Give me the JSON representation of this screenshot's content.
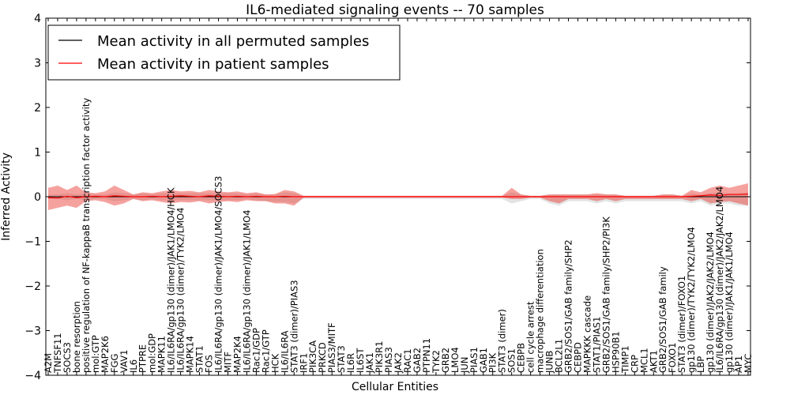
{
  "chart_data": {
    "type": "line",
    "title": "IL6-mediated signaling events -- 70 samples",
    "xlabel": "Cellular Entities",
    "ylabel": "Inferred Activity",
    "ylim": [
      -4,
      4
    ],
    "yticks": [
      -4,
      -3,
      -2,
      -1,
      0,
      1,
      2,
      3,
      4
    ],
    "legend": {
      "location": "top-left",
      "entries": [
        {
          "label": "Mean activity in all permuted samples",
          "color": "#000000"
        },
        {
          "label": "Mean activity in patient samples",
          "color": "#ff0000"
        }
      ]
    },
    "categories": [
      "A2M",
      "TNFSF11",
      "SOCS3",
      "bone resorption",
      "positive regulation of NF-kappaB transcription factor activity",
      "mol:GTP",
      "MAP2K6",
      "FGG",
      "VAV1",
      "IL6",
      "PTPRE",
      "mol:GDP",
      "MAPK11",
      "IL6/IL6RA/gp130 (dimer)/JAK1/LMO4/HCK",
      "IL6/IL6RA/gp130 (dimer)/TYK2/LMO4",
      "MAPK14",
      "STAT1",
      "FOS",
      "IL6/IL6RA/gp130 (dimer)/JAK1/LMO4/SOCS3",
      "MITF",
      "MAP2K4",
      "IL6/IL6RA/gp130 (dimer)/JAK1/LMO4",
      "Rac1/GDP",
      "Rac1/GTP",
      "HCK",
      "IL6/IL6RA",
      "STAT3 (dimer)/PIAS3",
      "IRF1",
      "PIK3CA",
      "PRKCD",
      "PIAS3/MITF",
      "STAT3",
      "IL6R",
      "IL6ST",
      "JAK1",
      "PIK3R1",
      "PIAS3",
      "JAK2",
      "RAC1",
      "GAB2",
      "PTPN11",
      "TYK2",
      "GRB2",
      "LMO4",
      "JUN",
      "PIAS1",
      "GAB1",
      "PI3K",
      "STAT3 (dimer)",
      "SOS1",
      "CEBPB",
      "cell cycle arrest",
      "macrophage differentiation",
      "JUNB",
      "BCL2L1",
      "GRB2/SOS1/GAB family/SHP2",
      "CEBPD",
      "MAPKKK cascade",
      "STAT1/PIAS1",
      "GRB2/SOS1/GAB family/SHP2/PI3K",
      "HSP90B1",
      "TIMP1",
      "CRP",
      "MCL1",
      "AKT1",
      "GRB2/SOS1/GAB family",
      "FOXO1",
      "STAT3 (dimer)/FOXO1",
      "gp130 (dimer)/TYK2/TYK2/LMO4",
      "LBP",
      "gp130 (dimer)/JAK2/JAK2/LMO4",
      "IL6/IL6RA/gp130 (dimer)/JAK2/JAK2/LMO4",
      "gp130 (dimer)/JAK1/JAK1/LMO4",
      "AP1",
      "MYC"
    ],
    "series": [
      {
        "name": "Mean activity in patient samples",
        "color": "#ff0000",
        "values": [
          -0.02,
          -0.03,
          0.01,
          -0.02,
          0.0,
          0.01,
          0.0,
          0.02,
          0.01,
          0.0,
          0.0,
          0.01,
          0.0,
          0.01,
          0.02,
          0.01,
          0.0,
          0.02,
          0.01,
          0.0,
          0.01,
          0.0,
          0.01,
          0.0,
          0.0,
          0.01,
          0.0,
          0.0,
          0.0,
          0.0,
          0.0,
          0.0,
          0.0,
          0.0,
          0.0,
          0.0,
          0.0,
          0.0,
          0.0,
          0.0,
          0.0,
          0.0,
          0.0,
          0.0,
          0.0,
          0.0,
          0.0,
          0.0,
          0.0,
          0.0,
          0.0,
          0.0,
          0.0,
          0.0,
          0.0,
          0.0,
          0.0,
          0.0,
          0.0,
          0.0,
          0.0,
          0.0,
          0.0,
          0.0,
          0.0,
          0.0,
          0.0,
          0.0,
          0.01,
          0.02,
          0.04,
          0.03,
          0.05,
          0.05,
          0.06
        ],
        "band_upper": [
          0.2,
          0.25,
          0.15,
          0.25,
          0.1,
          0.08,
          0.12,
          0.25,
          0.15,
          0.05,
          0.1,
          0.08,
          0.12,
          0.15,
          0.12,
          0.13,
          0.1,
          0.15,
          0.12,
          0.1,
          0.12,
          0.08,
          0.1,
          0.05,
          0.06,
          0.15,
          0.12,
          0.02,
          0.02,
          0.02,
          0.02,
          0.02,
          0.02,
          0.02,
          0.02,
          0.02,
          0.02,
          0.02,
          0.02,
          0.02,
          0.02,
          0.02,
          0.02,
          0.02,
          0.02,
          0.02,
          0.02,
          0.02,
          0.02,
          0.2,
          0.05,
          0.02,
          0.02,
          0.05,
          0.05,
          0.05,
          0.05,
          0.05,
          0.08,
          0.05,
          0.05,
          0.02,
          0.02,
          0.02,
          0.02,
          0.05,
          0.05,
          0.02,
          0.15,
          0.1,
          0.2,
          0.25,
          0.2,
          0.25,
          0.3
        ],
        "band_lower": [
          -0.3,
          -0.25,
          -0.2,
          -0.25,
          -0.1,
          -0.08,
          -0.12,
          -0.2,
          -0.15,
          -0.05,
          -0.1,
          -0.08,
          -0.12,
          -0.15,
          -0.12,
          -0.13,
          -0.1,
          -0.15,
          -0.12,
          -0.1,
          -0.12,
          -0.08,
          -0.1,
          -0.1,
          -0.15,
          -0.15,
          -0.2,
          -0.02,
          -0.02,
          -0.02,
          -0.02,
          -0.02,
          -0.02,
          -0.02,
          -0.02,
          -0.02,
          -0.02,
          -0.02,
          -0.02,
          -0.02,
          -0.02,
          -0.02,
          -0.02,
          -0.02,
          -0.02,
          -0.02,
          -0.02,
          -0.02,
          -0.02,
          -0.05,
          -0.05,
          -0.02,
          -0.02,
          -0.1,
          -0.15,
          -0.05,
          -0.05,
          -0.05,
          -0.1,
          -0.05,
          -0.1,
          -0.05,
          -0.05,
          -0.05,
          -0.05,
          -0.05,
          -0.05,
          -0.05,
          -0.1,
          -0.05,
          -0.15,
          -0.12,
          -0.1,
          -0.15,
          -0.2
        ]
      },
      {
        "name": "Mean activity in all permuted samples",
        "color": "#000000",
        "values": [
          0.0,
          0.0,
          0.0,
          0.0,
          0.0,
          0.0,
          0.0,
          0.0,
          0.0,
          0.0,
          0.0,
          0.0,
          0.0,
          0.0,
          0.0,
          0.0,
          0.0,
          0.0,
          0.0,
          0.0,
          0.0,
          0.0,
          0.0,
          0.0,
          0.0,
          0.0,
          0.0,
          0.0,
          0.0,
          0.0,
          0.0,
          0.0,
          0.0,
          0.0,
          0.0,
          0.0,
          0.0,
          0.0,
          0.0,
          0.0,
          0.0,
          0.0,
          0.0,
          0.0,
          0.0,
          0.0,
          0.0,
          0.0,
          0.0,
          0.0,
          0.0,
          0.0,
          0.0,
          0.0,
          0.0,
          0.0,
          0.0,
          0.0,
          0.0,
          0.0,
          0.0,
          0.0,
          0.0,
          0.0,
          0.0,
          0.0,
          0.0,
          0.0,
          0.0,
          0.0,
          0.0,
          0.0,
          0.0,
          0.0,
          0.0
        ],
        "band_upper": [
          0.05,
          0.05,
          0.08,
          0.05,
          0.08,
          0.05,
          0.05,
          0.1,
          0.08,
          0.05,
          0.08,
          0.05,
          0.08,
          0.08,
          0.08,
          0.08,
          0.08,
          0.08,
          0.08,
          0.08,
          0.08,
          0.05,
          0.08,
          0.05,
          0.05,
          0.1,
          0.08,
          0.02,
          0.02,
          0.02,
          0.02,
          0.02,
          0.02,
          0.02,
          0.02,
          0.02,
          0.02,
          0.02,
          0.02,
          0.02,
          0.02,
          0.02,
          0.02,
          0.02,
          0.02,
          0.02,
          0.02,
          0.02,
          0.02,
          0.1,
          0.05,
          0.02,
          0.02,
          0.05,
          0.05,
          0.05,
          0.05,
          0.05,
          0.05,
          0.05,
          0.05,
          0.02,
          0.02,
          0.02,
          0.02,
          0.05,
          0.05,
          0.02,
          0.08,
          0.05,
          0.08,
          0.1,
          0.08,
          0.08,
          0.1
        ],
        "band_lower": [
          -0.05,
          -0.05,
          -0.08,
          -0.05,
          -0.08,
          -0.05,
          -0.05,
          -0.1,
          -0.08,
          -0.05,
          -0.08,
          -0.05,
          -0.08,
          -0.08,
          -0.08,
          -0.08,
          -0.08,
          -0.08,
          -0.08,
          -0.08,
          -0.08,
          -0.05,
          -0.08,
          -0.1,
          -0.12,
          -0.12,
          -0.15,
          -0.05,
          -0.05,
          -0.05,
          -0.05,
          -0.05,
          -0.05,
          -0.05,
          -0.05,
          -0.05,
          -0.05,
          -0.05,
          -0.05,
          -0.05,
          -0.05,
          -0.05,
          -0.05,
          -0.05,
          -0.05,
          -0.05,
          -0.05,
          -0.05,
          -0.05,
          -0.15,
          -0.1,
          -0.05,
          -0.05,
          -0.15,
          -0.2,
          -0.1,
          -0.1,
          -0.1,
          -0.15,
          -0.1,
          -0.15,
          -0.1,
          -0.1,
          -0.1,
          -0.1,
          -0.1,
          -0.1,
          -0.1,
          -0.15,
          -0.1,
          -0.2,
          -0.15,
          -0.15,
          -0.2,
          -0.2
        ]
      }
    ]
  }
}
